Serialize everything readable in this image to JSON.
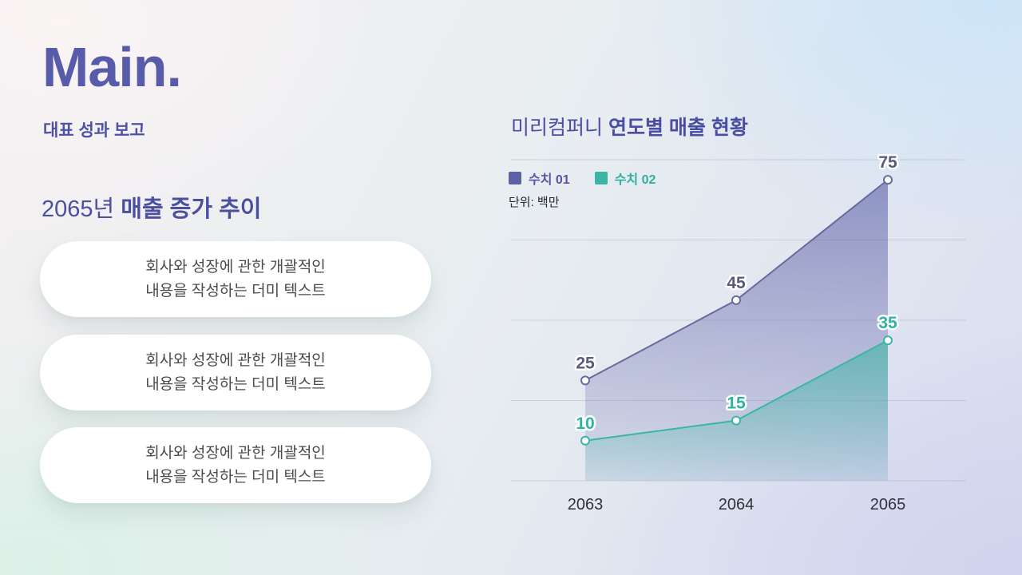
{
  "slide": {
    "logo": "Main.",
    "subtitle": "대표 성과 보고",
    "heading_prefix": "2065년 ",
    "heading_bold": "매출 증가 추이",
    "cards": [
      {
        "line1": "회사와 성장에 관한 개괄적인",
        "line2": "내용을 작성하는 더미 텍스트"
      },
      {
        "line1": "회사와 성장에 관한 개괄적인",
        "line2": "내용을 작성하는 더미 텍스트"
      },
      {
        "line1": "회사와 성장에 관한 개괄적인",
        "line2": "내용을 작성하는 더미 텍스트"
      }
    ],
    "chart_title_prefix": "미리컴퍼니 ",
    "chart_title_bold": "연도별 매출 현황",
    "unit_label": "단위: 백만"
  },
  "chart_data": {
    "type": "area",
    "title": "미리컴퍼니 연도별 매출 현황",
    "unit": "단위: 백만",
    "categories": [
      "2063",
      "2064",
      "2065"
    ],
    "series": [
      {
        "name": "수치 01",
        "color": "#5d61a7",
        "line_color": "#666b9d",
        "label_color": "#575c7c",
        "values": [
          25,
          45,
          75
        ]
      },
      {
        "name": "수치 02",
        "color": "#3ab5a3",
        "line_color": "#39b6a4",
        "label_color": "#2db4a0",
        "values": [
          10,
          15,
          35
        ]
      }
    ],
    "ylim": [
      0,
      80
    ],
    "grid_step": 20,
    "grid": true,
    "legend_position": "top-left",
    "xlabel": "",
    "ylabel": ""
  }
}
